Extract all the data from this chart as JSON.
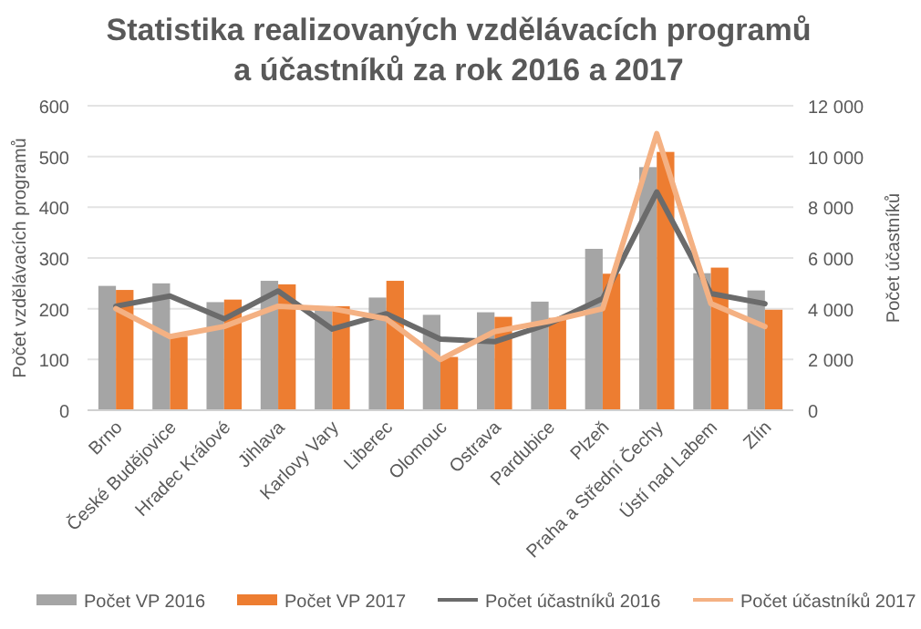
{
  "chart_data": {
    "type": "bar",
    "title": "Statistika realizovaných vzdělávacích programů\na účastníků za rok 2016 a 2017",
    "ylabel": "Počet vzdělávacích programů",
    "y2label": "Počet účastníků",
    "categories": [
      "Brno",
      "České Budějovice",
      "Hradec Králové",
      "Jihlava",
      "Karlovy Vary",
      "Liberec",
      "Olomouc",
      "Ostrava",
      "Pardubice",
      "Plzeň",
      "Praha a Střední Čechy",
      "Ústí nad Labem",
      "Zlín"
    ],
    "series": [
      {
        "name": "Počet VP 2016",
        "color": "#a5a5a5",
        "values": [
          245,
          250,
          213,
          255,
          200,
          222,
          188,
          193,
          214,
          318,
          479,
          270,
          236
        ]
      },
      {
        "name": "Počet VP 2017",
        "color": "#ed7d31",
        "values": [
          237,
          145,
          218,
          248,
          205,
          255,
          105,
          184,
          182,
          269,
          509,
          281,
          198
        ]
      },
      {
        "name": "Počet účastníků 2016",
        "type": "line",
        "axis": "y2",
        "color": "#6b6b6b",
        "values": [
          4100,
          4500,
          3600,
          4700,
          3200,
          3800,
          2800,
          2700,
          3400,
          4400,
          8600,
          4600,
          4200
        ]
      },
      {
        "name": "Počet účastníků 2017",
        "type": "line",
        "axis": "y2",
        "color": "#f4b183",
        "values": [
          4000,
          2900,
          3300,
          4100,
          4000,
          3600,
          2000,
          3100,
          3500,
          4000,
          10900,
          4200,
          3300
        ]
      }
    ],
    "ylim": [
      0,
      600
    ],
    "yticks": [
      0,
      100,
      200,
      300,
      400,
      500,
      600
    ],
    "y2lim": [
      0,
      12000
    ],
    "y2ticks": [
      0,
      {
        "value": 2000,
        "label": "2 000"
      },
      {
        "value": 4000,
        "label": "4 000"
      },
      {
        "value": 6000,
        "label": "6 000"
      },
      {
        "value": 8000,
        "label": "8 000"
      },
      {
        "value": 10000,
        "label": "10 000"
      },
      {
        "value": 12000,
        "label": "12 000"
      }
    ],
    "grid": "y",
    "legend": "bottom",
    "marker": "none",
    "line_style": "solid"
  }
}
